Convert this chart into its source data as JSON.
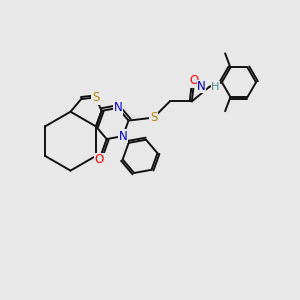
{
  "bg_color": "#e8e8e8",
  "S_color": "#b8860b",
  "N_color": "#0000cc",
  "O_color": "#ff0000",
  "H_color": "#4a8a8a",
  "C_color": "#111111",
  "bond_color": "#111111",
  "bond_lw": 1.4,
  "figsize": [
    3.0,
    3.0
  ],
  "dpi": 100,
  "xlim": [
    0,
    10
  ],
  "ylim": [
    0,
    10
  ]
}
